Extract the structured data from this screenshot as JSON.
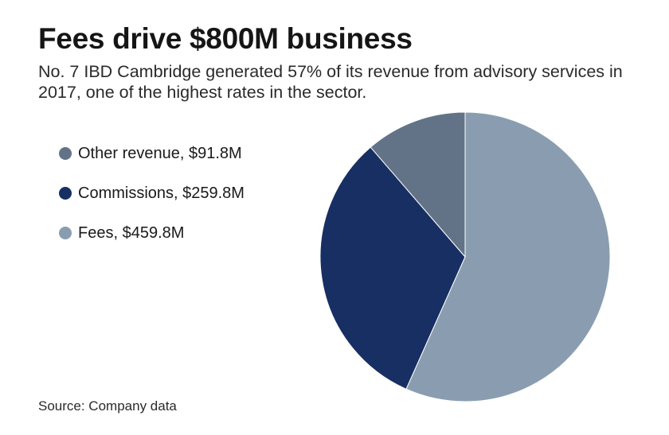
{
  "chart_data": {
    "type": "pie",
    "title": "Fees drive $800M business",
    "subtitle": "No. 7 IBD Cambridge generated 57% of its revenue from advisory services in 2017, one of the highest rates in the sector.",
    "source": "Source: Company data",
    "slices": [
      {
        "label": "Other revenue, $91.8M",
        "value": 91.8,
        "color": "#637387"
      },
      {
        "label": "Commissions, $259.8M",
        "value": 259.8,
        "color": "#182f63"
      },
      {
        "label": "Fees, $459.8M",
        "value": 459.8,
        "color": "#8a9db0"
      }
    ],
    "legend_position": "left"
  }
}
